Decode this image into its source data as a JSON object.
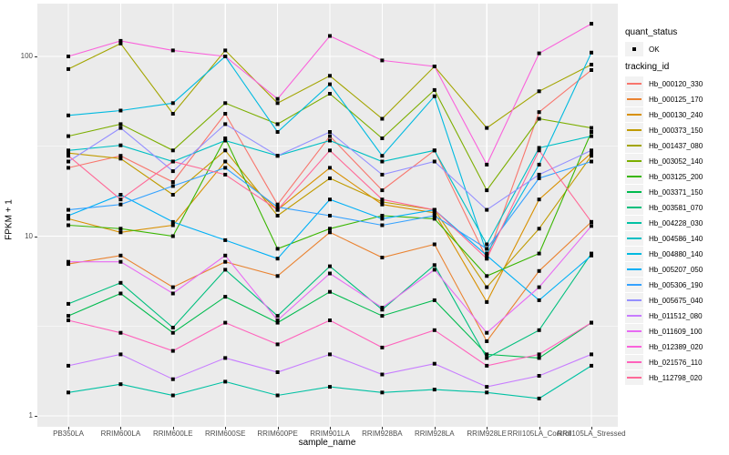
{
  "chart_data": {
    "type": "line",
    "title": "",
    "xlabel": "sample_name",
    "ylabel": "FPKM + 1",
    "y_scale": "log10",
    "y_ticks": [
      1,
      10,
      100
    ],
    "y_minor_gridlines": [
      3.162,
      31.62
    ],
    "ylim": [
      1.1,
      190
    ],
    "grid": "white-on-gray",
    "panel_bg": "#EBEBEB",
    "grid_color": "#FFFFFF",
    "marker": "black-point",
    "legend_position": "right",
    "categories": [
      "PB350LA",
      "RRIM600LA",
      "RRIM600LE",
      "RRIM600SE",
      "RRIM600PE",
      "RRIM901LA",
      "RRIM928BA",
      "RRIM928LA",
      "RRIM928LE",
      "RRII105LA_Control",
      "RRII105LA_Stressed"
    ],
    "series": [
      {
        "name": "Hb_000120_330",
        "color": "#F8766D",
        "values": [
          24,
          28,
          20,
          48,
          15,
          36,
          18,
          30,
          7.5,
          49,
          84
        ]
      },
      {
        "name": "Hb_000125_170",
        "color": "#EA8331",
        "values": [
          7.0,
          7.8,
          5.2,
          7.2,
          6.0,
          10.5,
          7.6,
          9.0,
          2.6,
          6.4,
          12
        ]
      },
      {
        "name": "Hb_000130_240",
        "color": "#D89000",
        "values": [
          12.5,
          10.5,
          11.5,
          26,
          14,
          24,
          15,
          13.5,
          4.3,
          16,
          29
        ]
      },
      {
        "name": "Hb_000373_150",
        "color": "#C09B00",
        "values": [
          29,
          27,
          17,
          30,
          13,
          21,
          15.5,
          14,
          5.2,
          11,
          28
        ]
      },
      {
        "name": "Hb_001437_080",
        "color": "#A3A500",
        "values": [
          85,
          118,
          48,
          108,
          55,
          78,
          45,
          88,
          40,
          64,
          90
        ]
      },
      {
        "name": "Hb_003052_140",
        "color": "#7CAE00",
        "values": [
          36,
          42,
          30,
          55,
          42,
          62,
          35,
          65,
          18,
          45,
          40
        ]
      },
      {
        "name": "Hb_003125_200",
        "color": "#39B600",
        "values": [
          11.5,
          11,
          10,
          35,
          8.5,
          11,
          13,
          12.5,
          6,
          8,
          38
        ]
      },
      {
        "name": "Hb_003371_150",
        "color": "#00BB4E",
        "values": [
          3.6,
          4.8,
          2.9,
          4.6,
          3.3,
          4.9,
          3.6,
          4.4,
          2.2,
          2.1,
          3.3
        ]
      },
      {
        "name": "Hb_003581_070",
        "color": "#00BF7D",
        "values": [
          4.2,
          5.5,
          3.1,
          6.5,
          3.6,
          6.8,
          3.9,
          6.9,
          2.1,
          3.0,
          8.0
        ]
      },
      {
        "name": "Hb_004228_030",
        "color": "#00C1A3",
        "values": [
          1.35,
          1.5,
          1.3,
          1.55,
          1.3,
          1.45,
          1.35,
          1.4,
          1.35,
          1.25,
          1.9
        ]
      },
      {
        "name": "Hb_004586_140",
        "color": "#00BFC4",
        "values": [
          30,
          32,
          26,
          34,
          28,
          34,
          26,
          30,
          9,
          31,
          36
        ]
      },
      {
        "name": "Hb_004880_140",
        "color": "#00BAE0",
        "values": [
          47,
          50,
          55,
          100,
          38,
          70,
          28,
          60,
          8,
          25,
          105
        ]
      },
      {
        "name": "Hb_005207_050",
        "color": "#00B0F6",
        "values": [
          13,
          17,
          12,
          9.5,
          7.5,
          16,
          12.5,
          14,
          7.8,
          4.4,
          7.8
        ]
      },
      {
        "name": "Hb_005306_190",
        "color": "#35A2FF",
        "values": [
          14,
          15,
          19,
          24,
          14.5,
          13,
          11.5,
          13,
          8.5,
          21,
          26
        ]
      },
      {
        "name": "Hb_005675_040",
        "color": "#9590FF",
        "values": [
          26,
          40,
          23,
          42,
          28,
          38,
          22,
          26,
          14,
          22,
          30
        ]
      },
      {
        "name": "Hb_011512_080",
        "color": "#C77CFF",
        "values": [
          1.9,
          2.2,
          1.6,
          2.1,
          1.75,
          2.2,
          1.7,
          1.95,
          1.45,
          1.67,
          2.2
        ]
      },
      {
        "name": "Hb_011609_100",
        "color": "#E76BF3",
        "values": [
          7.2,
          7.2,
          4.8,
          7.8,
          3.4,
          6.2,
          4.0,
          6.5,
          2.9,
          5.2,
          11.4
        ]
      },
      {
        "name": "Hb_012389_020",
        "color": "#FA62DB",
        "values": [
          100,
          122,
          108,
          100,
          58,
          130,
          95,
          88,
          25,
          104,
          152
        ]
      },
      {
        "name": "Hb_021576_110",
        "color": "#FF62BC",
        "values": [
          3.4,
          2.9,
          2.3,
          3.3,
          2.5,
          3.4,
          2.4,
          3.0,
          1.9,
          2.2,
          3.3
        ]
      },
      {
        "name": "Hb_112798_020",
        "color": "#FF6A98",
        "values": [
          28,
          16,
          26,
          22,
          14,
          30,
          16,
          14,
          7.5,
          30,
          12
        ]
      }
    ]
  },
  "legend": {
    "quant_title": "quant_status",
    "quant_value": "OK",
    "tracking_title": "tracking_id"
  }
}
